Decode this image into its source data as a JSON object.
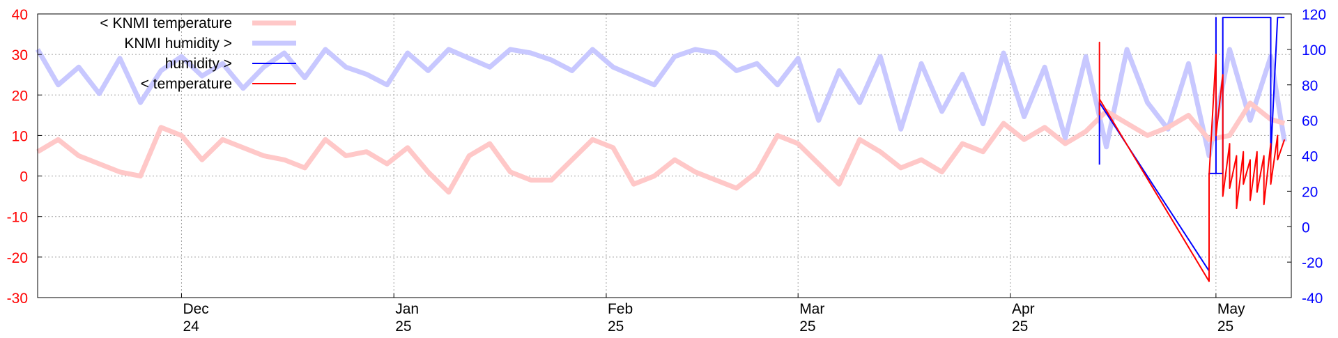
{
  "chart_data": {
    "type": "line",
    "title": "",
    "colors": {
      "left_axis": "#ff0000",
      "right_axis": "#0000ff",
      "knmi_temperature": "#ffc8c8",
      "knmi_humidity": "#c8c8ff",
      "humidity": "#0000ff",
      "temperature": "#ff0000",
      "grid": "#a0a0a0"
    },
    "x_axis": {
      "type": "date",
      "range": [
        "2024-11-10",
        "2025-05-12"
      ],
      "ticks": [
        {
          "date": "2024-12-01",
          "month": "Dec",
          "year": "24"
        },
        {
          "date": "2025-01-01",
          "month": "Jan",
          "year": "25"
        },
        {
          "date": "2025-02-01",
          "month": "Feb",
          "year": "25"
        },
        {
          "date": "2025-03-01",
          "month": "Mar",
          "year": "25"
        },
        {
          "date": "2025-04-01",
          "month": "Apr",
          "year": "25"
        },
        {
          "date": "2025-05-01",
          "month": "May",
          "year": "25"
        }
      ],
      "grid": true
    },
    "y_left": {
      "range": [
        -30,
        40
      ],
      "ticks": [
        "40",
        "30",
        "20",
        "10",
        "0",
        "-10",
        "-20",
        "-30"
      ]
    },
    "y_right": {
      "range": [
        -40,
        120
      ],
      "ticks": [
        "120",
        "100",
        "80",
        "60",
        "40",
        "20",
        "0",
        "-20",
        "-40"
      ]
    },
    "legend": {
      "placement": "top-left",
      "entries": [
        {
          "label": "< KNMI temperature",
          "series": "knmi_temperature"
        },
        {
          "label": "KNMI humidity >",
          "series": "knmi_humidity"
        },
        {
          "label": "humidity >",
          "series": "humidity"
        },
        {
          "label": "< temperature",
          "series": "temperature"
        }
      ]
    },
    "series": [
      {
        "name": "< KNMI temperature",
        "axis": "left",
        "x": [
          "2024-11-10",
          "2024-11-13",
          "2024-11-16",
          "2024-11-19",
          "2024-11-22",
          "2024-11-25",
          "2024-11-28",
          "2024-12-01",
          "2024-12-04",
          "2024-12-07",
          "2024-12-10",
          "2024-12-13",
          "2024-12-16",
          "2024-12-19",
          "2024-12-22",
          "2024-12-25",
          "2024-12-28",
          "2024-12-31",
          "2025-01-03",
          "2025-01-06",
          "2025-01-09",
          "2025-01-12",
          "2025-01-15",
          "2025-01-18",
          "2025-01-21",
          "2025-01-24",
          "2025-01-27",
          "2025-01-30",
          "2025-02-02",
          "2025-02-05",
          "2025-02-08",
          "2025-02-11",
          "2025-02-14",
          "2025-02-17",
          "2025-02-20",
          "2025-02-23",
          "2025-02-26",
          "2025-03-01",
          "2025-03-04",
          "2025-03-07",
          "2025-03-10",
          "2025-03-13",
          "2025-03-16",
          "2025-03-19",
          "2025-03-22",
          "2025-03-25",
          "2025-03-28",
          "2025-03-31",
          "2025-04-03",
          "2025-04-06",
          "2025-04-09",
          "2025-04-12",
          "2025-04-15",
          "2025-04-18",
          "2025-04-21",
          "2025-04-24",
          "2025-04-27",
          "2025-04-30",
          "2025-05-03",
          "2025-05-06",
          "2025-05-09",
          "2025-05-11"
        ],
        "y": [
          6,
          9,
          5,
          3,
          1,
          0,
          12,
          10,
          4,
          9,
          7,
          5,
          4,
          2,
          9,
          5,
          6,
          3,
          7,
          1,
          -4,
          5,
          8,
          1,
          -1,
          -1,
          4,
          9,
          7,
          -2,
          0,
          4,
          1,
          -1,
          -3,
          1,
          10,
          8,
          3,
          -2,
          9,
          6,
          2,
          4,
          1,
          8,
          6,
          13,
          9,
          12,
          8,
          11,
          16,
          13,
          10,
          12,
          15,
          9,
          10,
          18,
          14,
          13
        ]
      },
      {
        "name": "KNMI humidity >",
        "axis": "right",
        "x": [
          "2024-11-10",
          "2024-11-13",
          "2024-11-16",
          "2024-11-19",
          "2024-11-22",
          "2024-11-25",
          "2024-11-28",
          "2024-12-01",
          "2024-12-04",
          "2024-12-07",
          "2024-12-10",
          "2024-12-13",
          "2024-12-16",
          "2024-12-19",
          "2024-12-22",
          "2024-12-25",
          "2024-12-28",
          "2024-12-31",
          "2025-01-03",
          "2025-01-06",
          "2025-01-09",
          "2025-01-12",
          "2025-01-15",
          "2025-01-18",
          "2025-01-21",
          "2025-01-24",
          "2025-01-27",
          "2025-01-30",
          "2025-02-02",
          "2025-02-05",
          "2025-02-08",
          "2025-02-11",
          "2025-02-14",
          "2025-02-17",
          "2025-02-20",
          "2025-02-23",
          "2025-02-26",
          "2025-03-01",
          "2025-03-04",
          "2025-03-07",
          "2025-03-10",
          "2025-03-13",
          "2025-03-16",
          "2025-03-19",
          "2025-03-22",
          "2025-03-25",
          "2025-03-28",
          "2025-03-31",
          "2025-04-03",
          "2025-04-06",
          "2025-04-09",
          "2025-04-12",
          "2025-04-15",
          "2025-04-18",
          "2025-04-21",
          "2025-04-24",
          "2025-04-27",
          "2025-04-30",
          "2025-05-03",
          "2025-05-06",
          "2025-05-09",
          "2025-05-11"
        ],
        "y": [
          100,
          80,
          90,
          75,
          95,
          70,
          88,
          96,
          85,
          92,
          78,
          90,
          98,
          84,
          100,
          90,
          86,
          80,
          98,
          88,
          100,
          95,
          90,
          100,
          98,
          94,
          88,
          100,
          90,
          85,
          80,
          96,
          100,
          98,
          88,
          92,
          80,
          95,
          60,
          88,
          70,
          96,
          55,
          92,
          65,
          86,
          58,
          98,
          62,
          90,
          50,
          96,
          45,
          100,
          70,
          55,
          92,
          40,
          100,
          60,
          96,
          48
        ]
      },
      {
        "name": "humidity >",
        "axis": "right",
        "x": [
          "2025-04-14",
          "2025-04-14",
          "2025-04-14",
          "2025-04-30",
          "2025-04-30",
          "2025-05-01",
          "2025-05-01",
          "2025-05-01",
          "2025-05-01",
          "2025-05-02",
          "2025-05-02",
          "2025-05-06",
          "2025-05-06",
          "2025-05-07",
          "2025-05-07",
          "2025-05-09",
          "2025-05-09",
          "2025-05-09",
          "2025-05-10",
          "2025-05-11"
        ],
        "y": [
          35,
          70,
          70,
          -25,
          30,
          30,
          118,
          118,
          30,
          30,
          118,
          118,
          118,
          118,
          118,
          118,
          60,
          40,
          118,
          118
        ]
      },
      {
        "name": "< temperature",
        "axis": "left",
        "x": [
          "2025-04-14",
          "2025-04-14",
          "2025-04-14",
          "2025-04-30",
          "2025-04-30",
          "2025-05-01",
          "2025-05-01",
          "2025-05-02",
          "2025-05-02",
          "2025-05-03",
          "2025-05-03",
          "2025-05-04",
          "2025-05-04",
          "2025-05-05",
          "2025-05-05",
          "2025-05-06",
          "2025-05-06",
          "2025-05-07",
          "2025-05-07",
          "2025-05-08",
          "2025-05-08",
          "2025-05-09",
          "2025-05-09",
          "2025-05-10",
          "2025-05-10",
          "2025-05-11"
        ],
        "y": [
          15,
          33,
          19,
          -26,
          0,
          30,
          10,
          25,
          -5,
          8,
          -3,
          5,
          -8,
          6,
          -2,
          4,
          -6,
          6,
          -4,
          5,
          -7,
          8,
          -2,
          10,
          4,
          9
        ]
      }
    ]
  }
}
